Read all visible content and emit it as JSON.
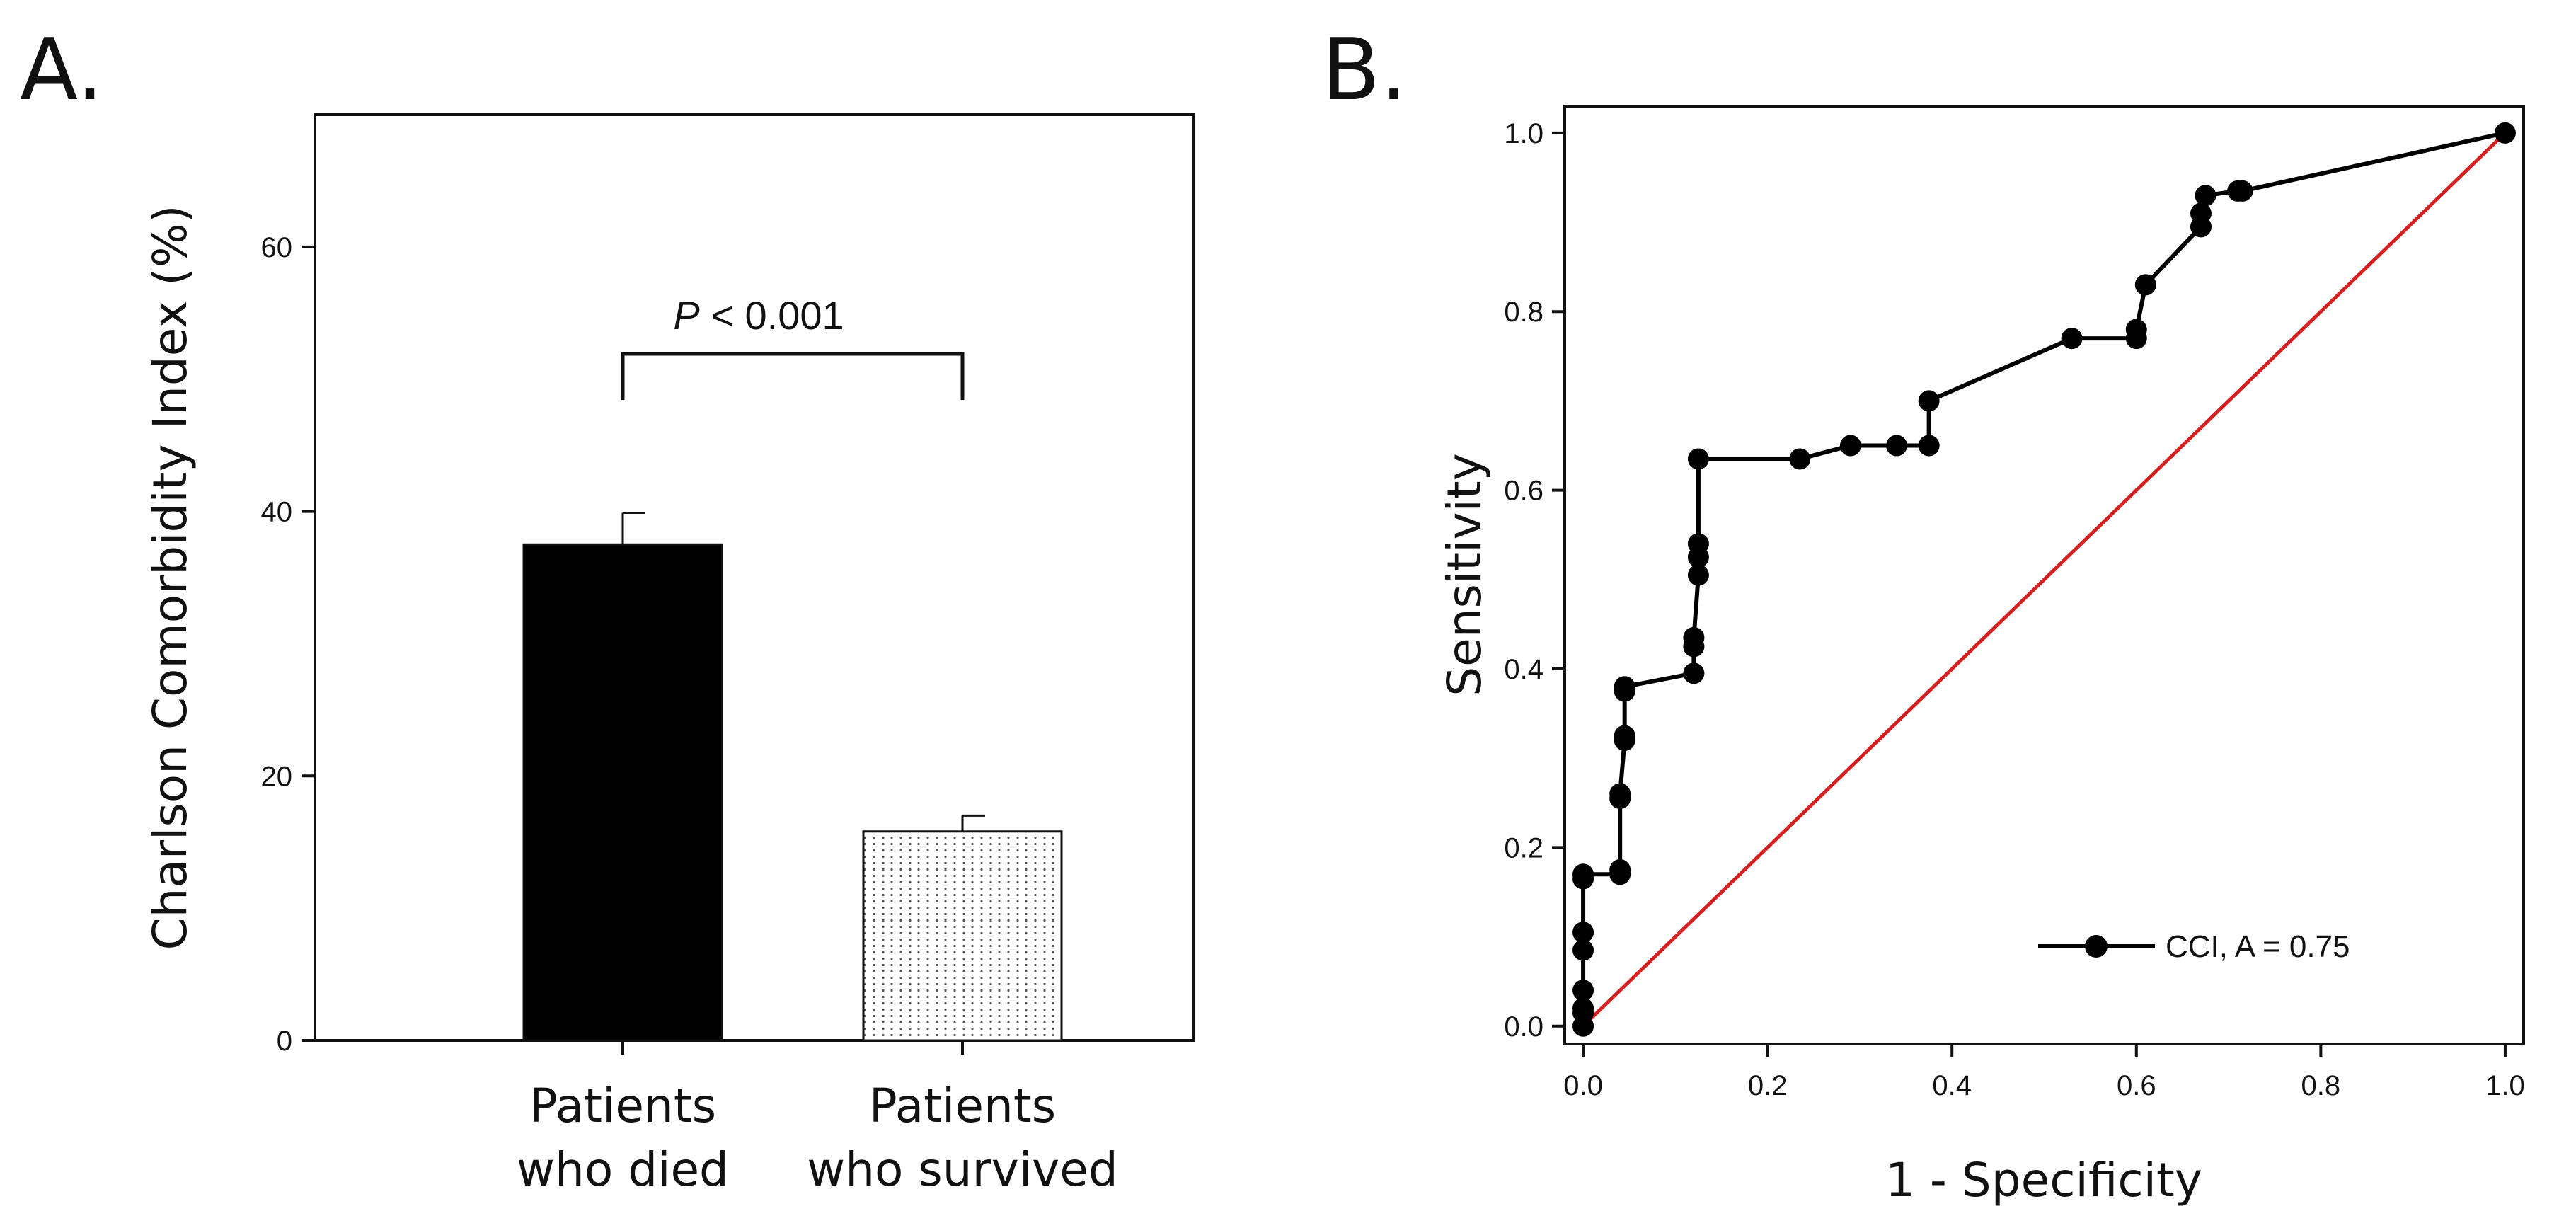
{
  "panels": {
    "a_label": "A.",
    "b_label": "B."
  },
  "colors": {
    "ink": "#111111",
    "bar_died": "#000000",
    "bar_survived_dots": "#555555",
    "reference_line": "#d42020",
    "roc_curve": "#000000"
  },
  "chart_data": [
    {
      "type": "bar",
      "panel": "A.",
      "categories": [
        [
          "Patients",
          "who died"
        ],
        [
          "Patients",
          "who survived"
        ]
      ],
      "values": [
        37.5,
        15.8
      ],
      "error_upper": [
        2.4,
        1.2
      ],
      "ylabel": "Charlson Comorbidity Index (%)",
      "xlabel": "",
      "ylim": [
        0,
        70
      ],
      "yticks": [
        0,
        20,
        40,
        60
      ],
      "fills": [
        "solid-black",
        "white-dotted"
      ],
      "annotation": {
        "italic": "P",
        "rest": " < 0.001"
      },
      "grid": false
    },
    {
      "type": "line",
      "panel": "B.",
      "xlabel": "1 - Specificity",
      "ylabel": "Sensitivity",
      "xlim": [
        -0.02,
        1.02
      ],
      "ylim": [
        -0.02,
        1.03
      ],
      "xticks": [
        "0.0",
        "0.2",
        "0.4",
        "0.6",
        "0.8",
        "1.0"
      ],
      "yticks": [
        "0.0",
        "0.2",
        "0.4",
        "0.6",
        "0.8",
        "1.0"
      ],
      "series": [
        {
          "name": "CCI, A = 0.75",
          "marker": "circle",
          "x": [
            0.0,
            0.0,
            0.0,
            0.0,
            0.0,
            0.0,
            0.0,
            0.0,
            0.04,
            0.04,
            0.04,
            0.04,
            0.045,
            0.045,
            0.045,
            0.045,
            0.12,
            0.12,
            0.12,
            0.125,
            0.125,
            0.125,
            0.125,
            0.235,
            0.29,
            0.34,
            0.375,
            0.375,
            0.53,
            0.6,
            0.6,
            0.61,
            0.67,
            0.67,
            0.675,
            0.71,
            0.715,
            1.0
          ],
          "y": [
            0.0,
            0.015,
            0.02,
            0.04,
            0.085,
            0.105,
            0.165,
            0.17,
            0.17,
            0.175,
            0.255,
            0.26,
            0.32,
            0.325,
            0.375,
            0.38,
            0.395,
            0.425,
            0.435,
            0.505,
            0.525,
            0.54,
            0.635,
            0.635,
            0.65,
            0.65,
            0.65,
            0.7,
            0.77,
            0.77,
            0.78,
            0.83,
            0.895,
            0.91,
            0.93,
            0.935,
            0.935,
            1.0
          ]
        },
        {
          "name": "reference",
          "x": [
            0.0,
            1.0
          ],
          "y": [
            0.0,
            1.0
          ]
        }
      ],
      "legend": {
        "label": "CCI, A = 0.75",
        "position": "bottom-right"
      },
      "grid": false
    }
  ]
}
